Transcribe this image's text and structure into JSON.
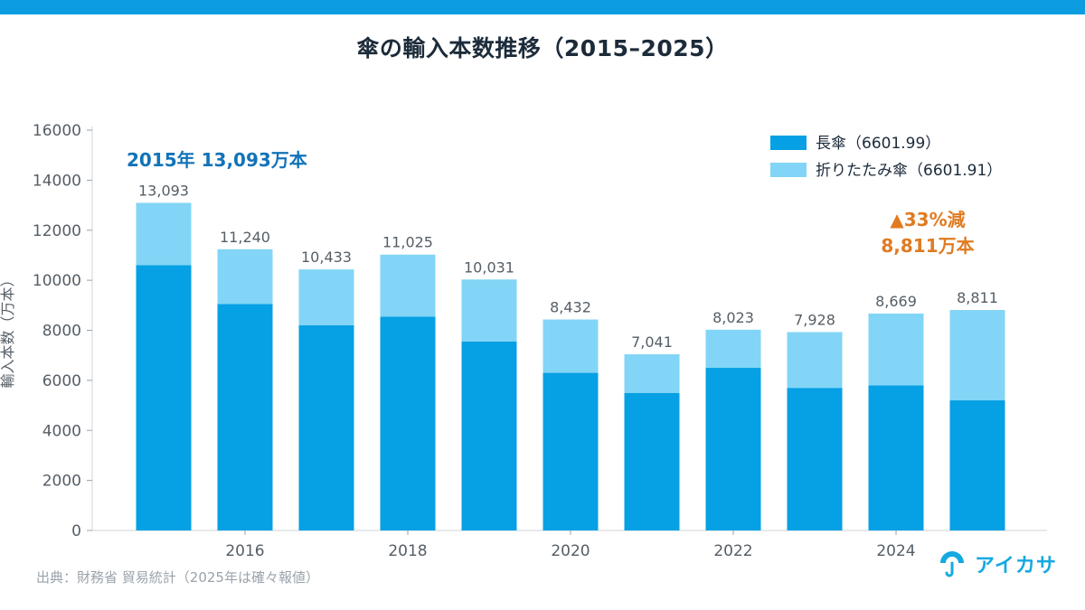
{
  "title": "傘の輸入本数推移（2015–2025）",
  "source": "出典：財務省 貿易統計（2025年は確々報値）",
  "logo_text": "アイカサ",
  "colors": {
    "top_bar": "#0b9ddf",
    "long_umbrella": "#06a0e4",
    "folding_umbrella": "#82d5f6",
    "annotation_2015": "#1173b8",
    "annotation_2025": "#e07b22",
    "text": "#1c2b3a",
    "axis_text": "#555e66"
  },
  "chart_data": {
    "type": "bar",
    "stacked": true,
    "categories": [
      "2015",
      "2016",
      "2017",
      "2018",
      "2019",
      "2020",
      "2021",
      "2022",
      "2023",
      "2024",
      "2025"
    ],
    "xtick_labels": [
      "2016",
      "2018",
      "2020",
      "2022",
      "2024"
    ],
    "series": [
      {
        "name": "長傘（6601.99）",
        "color": "#06a0e4",
        "values": [
          10600,
          9050,
          8200,
          8550,
          7550,
          6300,
          5500,
          6500,
          5700,
          5800,
          5200
        ]
      },
      {
        "name": "折りたたみ傘（6601.91）",
        "color": "#82d5f6",
        "values": [
          2493,
          2190,
          2233,
          2475,
          2481,
          2132,
          1541,
          1523,
          2228,
          2869,
          3611
        ]
      }
    ],
    "totals": [
      13093,
      11240,
      10433,
      11025,
      10031,
      8432,
      7041,
      8023,
      7928,
      8669,
      8811
    ],
    "total_labels": [
      "13,093",
      "11,240",
      "10,433",
      "11,025",
      "10,031",
      "8,432",
      "7,041",
      "8,023",
      "7,928",
      "8,669",
      "8,811"
    ],
    "ylabel": "輸入本数（万本）",
    "ylim": [
      0,
      16000
    ],
    "yticks": [
      0,
      2000,
      4000,
      6000,
      8000,
      10000,
      12000,
      14000,
      16000
    ],
    "grid": false,
    "legend_position": "top-right",
    "annotations": [
      {
        "lines": [
          "2015年 13,093万本"
        ],
        "color": "#1173b8"
      },
      {
        "lines": [
          "▲33%減",
          "8,811万本"
        ],
        "color": "#e07b22"
      }
    ]
  }
}
